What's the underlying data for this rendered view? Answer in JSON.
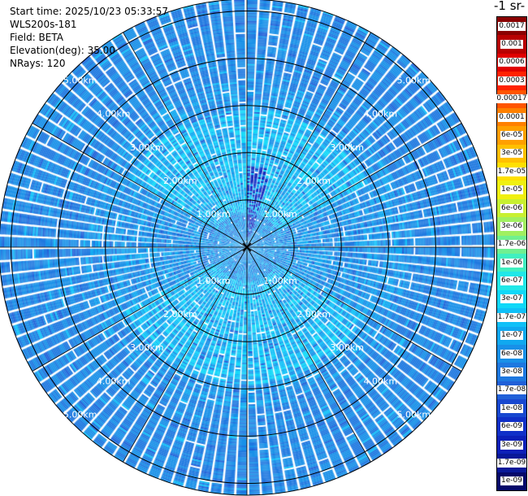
{
  "header": {
    "start_time": "Start time: 2025/10/23 05:33:57",
    "instrument": "WLS200s-181",
    "field": "Field: BETA",
    "elevation": "Elevation(deg): 35.00",
    "nrays": "NRays: 120"
  },
  "colorbar": {
    "units_label": "-1 sr-",
    "labels": [
      "0.0017",
      "0.001",
      "0.0006",
      "0.0003",
      "0.00017",
      "0.0001",
      "6e-05",
      "3e-05",
      "1.7e-05",
      "1e-05",
      "6e-06",
      "3e-06",
      "1.7e-06",
      "1e-06",
      "6e-07",
      "3e-07",
      "1.7e-07",
      "1e-07",
      "6e-08",
      "3e-08",
      "1.7e-08",
      "1e-08",
      "6e-09",
      "3e-09",
      "1.7e-09",
      "1e-09"
    ],
    "colors": [
      "#8a0000",
      "#b80000",
      "#e00000",
      "#ff2200",
      "#ff5500",
      "#ff8000",
      "#ffa000",
      "#ffc000",
      "#ffe000",
      "#f0f010",
      "#c8f030",
      "#a0f060",
      "#70f090",
      "#40f0c0",
      "#20e8e8",
      "#10d8f8",
      "#10c0f8",
      "#10a8f0",
      "#1890e8",
      "#1e78e0",
      "#2060d8",
      "#1848d0",
      "#1030c8",
      "#0c20b8",
      "#081898",
      "#04086a"
    ]
  },
  "rings": {
    "labels": [
      "1.00km",
      "2.00km",
      "3.00km",
      "4.00km",
      "5.00km"
    ]
  },
  "chart_data": {
    "type": "ppi",
    "field": "BETA",
    "elevation_deg": 35.0,
    "nrays": 120,
    "range_rings_km": [
      1,
      2,
      3,
      4,
      5
    ],
    "max_range_km": 5.0,
    "color_scale": "log",
    "value_range": [
      1e-09,
      0.0017
    ],
    "background_value_approx": 2e-08
  }
}
